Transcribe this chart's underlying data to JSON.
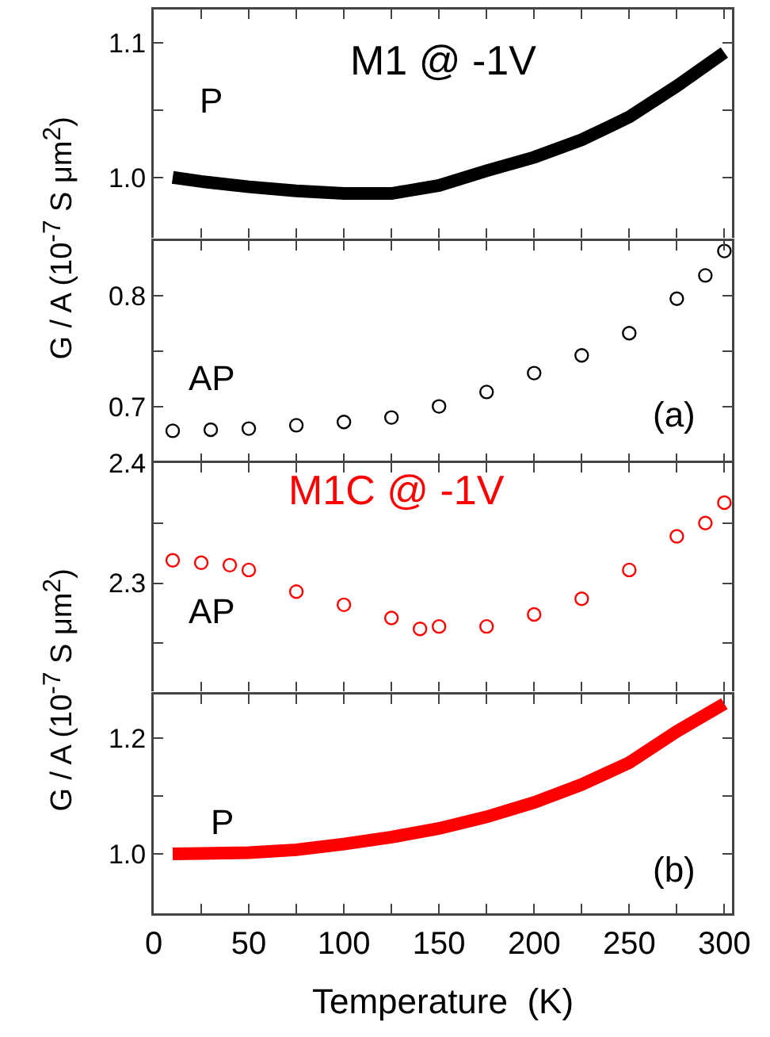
{
  "chart_data": [
    {
      "type": "line",
      "title": "M1 @ -1V",
      "ylabel": "G / A  (10$^{-7}$ S μm$^{2}$)",
      "xlim": [
        0,
        304
      ],
      "xticks": [
        0,
        25,
        50,
        75,
        100,
        125,
        150,
        175,
        200,
        225,
        250,
        275,
        300
      ],
      "ylim": [
        0.955,
        1.125
      ],
      "yticks": [
        {
          "value": 1,
          "label": "1.0"
        },
        {
          "value": 1.05,
          "label": null
        },
        1.1
      ],
      "tick_labels": "y",
      "marker": "none",
      "annotations": [
        "P"
      ],
      "series": [
        {
          "color": "#000000",
          "x": [
            10,
            25,
            50,
            75,
            100,
            125,
            150,
            175,
            200,
            225,
            250,
            275,
            300
          ],
          "values": [
            1.0,
            0.997,
            0.993,
            0.99,
            0.988,
            0.988,
            0.994,
            1.005,
            1.015,
            1.028,
            1.045,
            1.068,
            1.093
          ]
        }
      ]
    },
    {
      "type": "scatter",
      "xlim": [
        0,
        304
      ],
      "xticks": [
        0,
        25,
        50,
        75,
        100,
        125,
        150,
        175,
        200,
        225,
        250,
        275,
        300
      ],
      "ylim": [
        0.649,
        0.849
      ],
      "yticks": [
        0.7,
        {
          "value": 0.75,
          "label": null
        },
        0.8
      ],
      "tick_labels": "y",
      "marker": "circle",
      "annotations": [
        "AP",
        "(a)"
      ],
      "series": [
        {
          "color": "#000000",
          "x": [
            10,
            30,
            50,
            75,
            100,
            125,
            150,
            175,
            200,
            225,
            250,
            275,
            290,
            300
          ],
          "values": [
            0.678,
            0.679,
            0.68,
            0.683,
            0.686,
            0.69,
            0.7,
            0.713,
            0.73,
            0.746,
            0.766,
            0.797,
            0.818,
            0.84
          ]
        }
      ]
    },
    {
      "type": "scatter",
      "title": "M1C @ -1V",
      "ylabel": "G / A  (10$^{-7}$ S μm$^{2}$)",
      "xlim": [
        0,
        304
      ],
      "xticks": [
        0,
        25,
        50,
        75,
        100,
        125,
        150,
        175,
        200,
        225,
        250,
        275,
        300
      ],
      "ylim": [
        2.21,
        2.4
      ],
      "yticks": [
        {
          "value": 2.25,
          "label": null
        },
        2.3,
        {
          "value": 2.35,
          "label": null
        },
        2.4
      ],
      "tick_labels": "y",
      "marker": "circle",
      "annotations": [
        "AP"
      ],
      "series": [
        {
          "color": "#ff0000",
          "x": [
            10,
            25,
            40,
            50,
            75,
            100,
            125,
            140,
            150,
            175,
            200,
            225,
            250,
            275,
            290,
            300
          ],
          "values": [
            2.319,
            2.317,
            2.315,
            2.311,
            2.293,
            2.282,
            2.271,
            2.262,
            2.264,
            2.264,
            2.274,
            2.287,
            2.311,
            2.339,
            2.35,
            2.367
          ]
        }
      ]
    },
    {
      "type": "line",
      "xlabel": "Temperature  (K)",
      "xlim": [
        0,
        304
      ],
      "xticks": [
        0,
        {
          "value": 25,
          "label": null
        },
        50,
        {
          "value": 75,
          "label": null
        },
        100,
        {
          "value": 125,
          "label": null
        },
        150,
        {
          "value": 175,
          "label": null
        },
        200,
        {
          "value": 225,
          "label": null
        },
        250,
        {
          "value": 275,
          "label": null
        },
        300
      ],
      "ylim": [
        0.897,
        1.276
      ],
      "yticks": [
        {
          "value": 1,
          "label": "1.0"
        },
        {
          "value": 1.1,
          "label": null
        },
        1.2
      ],
      "marker": "none",
      "annotations": [
        "P",
        "(b)"
      ],
      "series": [
        {
          "color": "#ff0000",
          "x": [
            10,
            50,
            75,
            100,
            125,
            150,
            175,
            200,
            225,
            250,
            275,
            300
          ],
          "values": [
            1.0,
            1.002,
            1.007,
            1.017,
            1.029,
            1.044,
            1.064,
            1.089,
            1.12,
            1.158,
            1.212,
            1.26
          ]
        }
      ]
    }
  ]
}
